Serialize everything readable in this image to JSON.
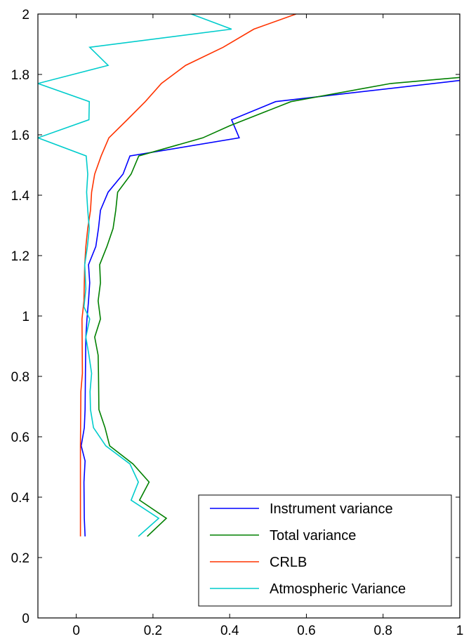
{
  "chart_data": {
    "type": "line",
    "title": "",
    "xlabel": "",
    "ylabel": "",
    "xlim": [
      -0.1,
      1
    ],
    "ylim": [
      0,
      2
    ],
    "xticks": [
      "0",
      "0.2",
      "0.4",
      "0.6",
      "0.8",
      "1"
    ],
    "yticks": [
      "0",
      "0.2",
      "0.4",
      "0.6",
      "0.8",
      "1",
      "1.2",
      "1.4",
      "1.6",
      "1.8",
      "2"
    ],
    "grid": false,
    "legend_position": "bottom-right",
    "series": [
      {
        "name": "Instrument variance",
        "color": "#0000ff",
        "points": [
          [
            0.023,
            0.27
          ],
          [
            0.021,
            0.33
          ],
          [
            0.02,
            0.45
          ],
          [
            0.023,
            0.52
          ],
          [
            0.013,
            0.57
          ],
          [
            0.021,
            0.63
          ],
          [
            0.023,
            0.69
          ],
          [
            0.024,
            0.81
          ],
          [
            0.025,
            0.93
          ],
          [
            0.028,
            0.99
          ],
          [
            0.032,
            1.05
          ],
          [
            0.035,
            1.11
          ],
          [
            0.032,
            1.17
          ],
          [
            0.051,
            1.23
          ],
          [
            0.058,
            1.29
          ],
          [
            0.063,
            1.35
          ],
          [
            0.083,
            1.41
          ],
          [
            0.122,
            1.47
          ],
          [
            0.14,
            1.53
          ],
          [
            0.425,
            1.59
          ],
          [
            0.405,
            1.65
          ],
          [
            0.52,
            1.71
          ],
          [
            1.0,
            1.78
          ]
        ]
      },
      {
        "name": "Total variance",
        "color": "#008000",
        "points": [
          [
            0.185,
            0.27
          ],
          [
            0.235,
            0.33
          ],
          [
            0.165,
            0.39
          ],
          [
            0.19,
            0.45
          ],
          [
            0.148,
            0.51
          ],
          [
            0.087,
            0.57
          ],
          [
            0.075,
            0.63
          ],
          [
            0.059,
            0.69
          ],
          [
            0.058,
            0.81
          ],
          [
            0.057,
            0.87
          ],
          [
            0.048,
            0.93
          ],
          [
            0.063,
            0.99
          ],
          [
            0.057,
            1.05
          ],
          [
            0.063,
            1.11
          ],
          [
            0.061,
            1.17
          ],
          [
            0.08,
            1.23
          ],
          [
            0.096,
            1.29
          ],
          [
            0.103,
            1.35
          ],
          [
            0.108,
            1.41
          ],
          [
            0.143,
            1.47
          ],
          [
            0.163,
            1.53
          ],
          [
            0.33,
            1.59
          ],
          [
            0.4,
            1.63
          ],
          [
            0.56,
            1.71
          ],
          [
            0.82,
            1.77
          ],
          [
            1.0,
            1.79
          ]
        ]
      },
      {
        "name": "CRLB",
        "color": "#ff3300",
        "points": [
          [
            0.011,
            0.27
          ],
          [
            0.011,
            0.57
          ],
          [
            0.012,
            0.75
          ],
          [
            0.016,
            0.81
          ],
          [
            0.015,
            0.99
          ],
          [
            0.02,
            1.05
          ],
          [
            0.021,
            1.11
          ],
          [
            0.022,
            1.17
          ],
          [
            0.025,
            1.23
          ],
          [
            0.03,
            1.29
          ],
          [
            0.037,
            1.35
          ],
          [
            0.04,
            1.41
          ],
          [
            0.048,
            1.47
          ],
          [
            0.065,
            1.53
          ],
          [
            0.085,
            1.59
          ],
          [
            0.133,
            1.65
          ],
          [
            0.18,
            1.71
          ],
          [
            0.222,
            1.77
          ],
          [
            0.285,
            1.83
          ],
          [
            0.383,
            1.89
          ],
          [
            0.463,
            1.95
          ],
          [
            0.573,
            2.0
          ]
        ]
      },
      {
        "name": "Atmospheric Variance",
        "color": "#00cccc",
        "points": [
          [
            0.162,
            0.27
          ],
          [
            0.215,
            0.33
          ],
          [
            0.143,
            0.39
          ],
          [
            0.162,
            0.45
          ],
          [
            0.14,
            0.51
          ],
          [
            0.077,
            0.57
          ],
          [
            0.045,
            0.63
          ],
          [
            0.037,
            0.69
          ],
          [
            0.036,
            0.75
          ],
          [
            0.04,
            0.81
          ],
          [
            0.033,
            0.87
          ],
          [
            0.025,
            0.93
          ],
          [
            0.035,
            0.99
          ],
          [
            0.02,
            1.03
          ],
          [
            0.025,
            1.09
          ],
          [
            0.022,
            1.17
          ],
          [
            0.029,
            1.23
          ],
          [
            0.034,
            1.29
          ],
          [
            0.03,
            1.35
          ],
          [
            0.027,
            1.41
          ],
          [
            0.03,
            1.47
          ],
          [
            0.026,
            1.53
          ],
          [
            -0.1,
            1.59
          ],
          [
            0.033,
            1.65
          ],
          [
            0.034,
            1.71
          ],
          [
            -0.1,
            1.77
          ],
          [
            0.083,
            1.83
          ],
          [
            0.035,
            1.89
          ],
          [
            0.405,
            1.95
          ],
          [
            0.3,
            2.0
          ]
        ]
      }
    ]
  }
}
